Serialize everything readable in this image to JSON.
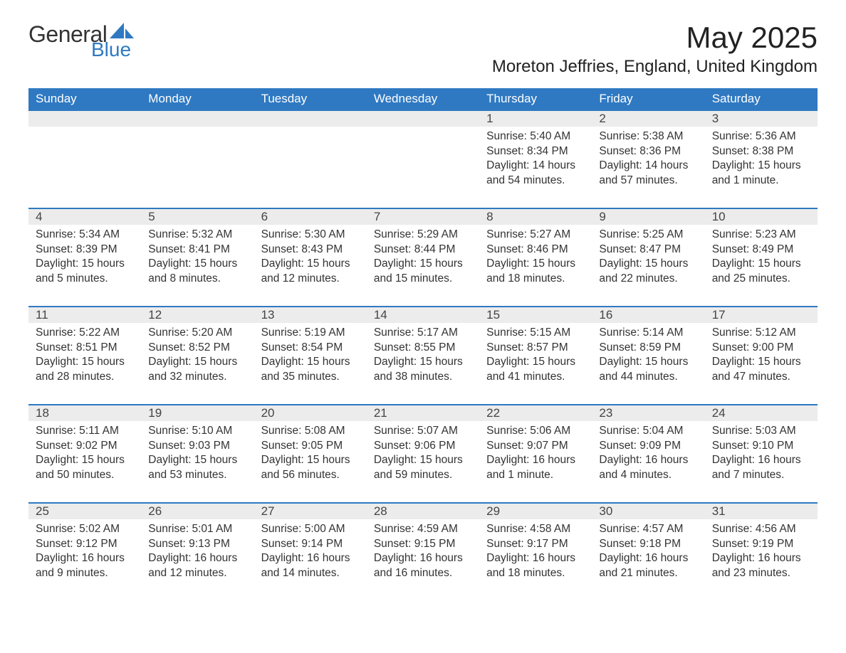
{
  "logo": {
    "text1": "General",
    "text2": "Blue",
    "sail_color": "#2f79c2"
  },
  "title": "May 2025",
  "location": "Moreton Jeffries, England, United Kingdom",
  "colors": {
    "header_bg": "#2f79c2",
    "header_fg": "#ffffff",
    "daynum_bg": "#ececec",
    "row_border": "#2f79c2",
    "text": "#333333",
    "background": "#ffffff"
  },
  "day_headers": [
    "Sunday",
    "Monday",
    "Tuesday",
    "Wednesday",
    "Thursday",
    "Friday",
    "Saturday"
  ],
  "weeks": [
    [
      {
        "empty": true
      },
      {
        "empty": true
      },
      {
        "empty": true
      },
      {
        "empty": true
      },
      {
        "n": "1",
        "sunrise": "Sunrise: 5:40 AM",
        "sunset": "Sunset: 8:34 PM",
        "daylight": "Daylight: 14 hours and 54 minutes."
      },
      {
        "n": "2",
        "sunrise": "Sunrise: 5:38 AM",
        "sunset": "Sunset: 8:36 PM",
        "daylight": "Daylight: 14 hours and 57 minutes."
      },
      {
        "n": "3",
        "sunrise": "Sunrise: 5:36 AM",
        "sunset": "Sunset: 8:38 PM",
        "daylight": "Daylight: 15 hours and 1 minute."
      }
    ],
    [
      {
        "n": "4",
        "sunrise": "Sunrise: 5:34 AM",
        "sunset": "Sunset: 8:39 PM",
        "daylight": "Daylight: 15 hours and 5 minutes."
      },
      {
        "n": "5",
        "sunrise": "Sunrise: 5:32 AM",
        "sunset": "Sunset: 8:41 PM",
        "daylight": "Daylight: 15 hours and 8 minutes."
      },
      {
        "n": "6",
        "sunrise": "Sunrise: 5:30 AM",
        "sunset": "Sunset: 8:43 PM",
        "daylight": "Daylight: 15 hours and 12 minutes."
      },
      {
        "n": "7",
        "sunrise": "Sunrise: 5:29 AM",
        "sunset": "Sunset: 8:44 PM",
        "daylight": "Daylight: 15 hours and 15 minutes."
      },
      {
        "n": "8",
        "sunrise": "Sunrise: 5:27 AM",
        "sunset": "Sunset: 8:46 PM",
        "daylight": "Daylight: 15 hours and 18 minutes."
      },
      {
        "n": "9",
        "sunrise": "Sunrise: 5:25 AM",
        "sunset": "Sunset: 8:47 PM",
        "daylight": "Daylight: 15 hours and 22 minutes."
      },
      {
        "n": "10",
        "sunrise": "Sunrise: 5:23 AM",
        "sunset": "Sunset: 8:49 PM",
        "daylight": "Daylight: 15 hours and 25 minutes."
      }
    ],
    [
      {
        "n": "11",
        "sunrise": "Sunrise: 5:22 AM",
        "sunset": "Sunset: 8:51 PM",
        "daylight": "Daylight: 15 hours and 28 minutes."
      },
      {
        "n": "12",
        "sunrise": "Sunrise: 5:20 AM",
        "sunset": "Sunset: 8:52 PM",
        "daylight": "Daylight: 15 hours and 32 minutes."
      },
      {
        "n": "13",
        "sunrise": "Sunrise: 5:19 AM",
        "sunset": "Sunset: 8:54 PM",
        "daylight": "Daylight: 15 hours and 35 minutes."
      },
      {
        "n": "14",
        "sunrise": "Sunrise: 5:17 AM",
        "sunset": "Sunset: 8:55 PM",
        "daylight": "Daylight: 15 hours and 38 minutes."
      },
      {
        "n": "15",
        "sunrise": "Sunrise: 5:15 AM",
        "sunset": "Sunset: 8:57 PM",
        "daylight": "Daylight: 15 hours and 41 minutes."
      },
      {
        "n": "16",
        "sunrise": "Sunrise: 5:14 AM",
        "sunset": "Sunset: 8:59 PM",
        "daylight": "Daylight: 15 hours and 44 minutes."
      },
      {
        "n": "17",
        "sunrise": "Sunrise: 5:12 AM",
        "sunset": "Sunset: 9:00 PM",
        "daylight": "Daylight: 15 hours and 47 minutes."
      }
    ],
    [
      {
        "n": "18",
        "sunrise": "Sunrise: 5:11 AM",
        "sunset": "Sunset: 9:02 PM",
        "daylight": "Daylight: 15 hours and 50 minutes."
      },
      {
        "n": "19",
        "sunrise": "Sunrise: 5:10 AM",
        "sunset": "Sunset: 9:03 PM",
        "daylight": "Daylight: 15 hours and 53 minutes."
      },
      {
        "n": "20",
        "sunrise": "Sunrise: 5:08 AM",
        "sunset": "Sunset: 9:05 PM",
        "daylight": "Daylight: 15 hours and 56 minutes."
      },
      {
        "n": "21",
        "sunrise": "Sunrise: 5:07 AM",
        "sunset": "Sunset: 9:06 PM",
        "daylight": "Daylight: 15 hours and 59 minutes."
      },
      {
        "n": "22",
        "sunrise": "Sunrise: 5:06 AM",
        "sunset": "Sunset: 9:07 PM",
        "daylight": "Daylight: 16 hours and 1 minute."
      },
      {
        "n": "23",
        "sunrise": "Sunrise: 5:04 AM",
        "sunset": "Sunset: 9:09 PM",
        "daylight": "Daylight: 16 hours and 4 minutes."
      },
      {
        "n": "24",
        "sunrise": "Sunrise: 5:03 AM",
        "sunset": "Sunset: 9:10 PM",
        "daylight": "Daylight: 16 hours and 7 minutes."
      }
    ],
    [
      {
        "n": "25",
        "sunrise": "Sunrise: 5:02 AM",
        "sunset": "Sunset: 9:12 PM",
        "daylight": "Daylight: 16 hours and 9 minutes."
      },
      {
        "n": "26",
        "sunrise": "Sunrise: 5:01 AM",
        "sunset": "Sunset: 9:13 PM",
        "daylight": "Daylight: 16 hours and 12 minutes."
      },
      {
        "n": "27",
        "sunrise": "Sunrise: 5:00 AM",
        "sunset": "Sunset: 9:14 PM",
        "daylight": "Daylight: 16 hours and 14 minutes."
      },
      {
        "n": "28",
        "sunrise": "Sunrise: 4:59 AM",
        "sunset": "Sunset: 9:15 PM",
        "daylight": "Daylight: 16 hours and 16 minutes."
      },
      {
        "n": "29",
        "sunrise": "Sunrise: 4:58 AM",
        "sunset": "Sunset: 9:17 PM",
        "daylight": "Daylight: 16 hours and 18 minutes."
      },
      {
        "n": "30",
        "sunrise": "Sunrise: 4:57 AM",
        "sunset": "Sunset: 9:18 PM",
        "daylight": "Daylight: 16 hours and 21 minutes."
      },
      {
        "n": "31",
        "sunrise": "Sunrise: 4:56 AM",
        "sunset": "Sunset: 9:19 PM",
        "daylight": "Daylight: 16 hours and 23 minutes."
      }
    ]
  ]
}
